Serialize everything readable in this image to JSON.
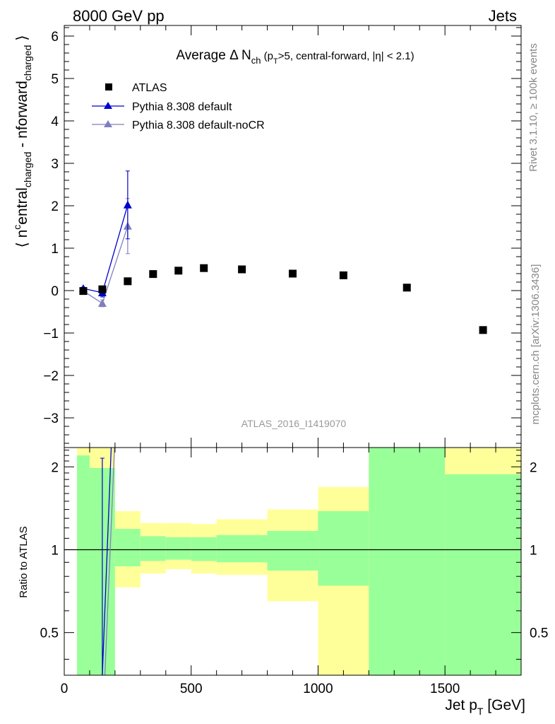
{
  "header": {
    "left": "8000 GeV pp",
    "right": "Jets"
  },
  "side_text": {
    "rivet": "Rivet 3.1.10, ≥ 100k events",
    "mcplots": "mcplots.cern.ch [arXiv:1306.3436]"
  },
  "watermark": "ATLAS_2016_I1419070",
  "colors": {
    "atlas": "#000000",
    "default": "#0000cc",
    "noCR": "#7f7fbf",
    "band_green": "#99ff99",
    "band_yellow": "#ffff99"
  },
  "chart_data": [
    {
      "type": "scatter",
      "title": "Average Δ N_ch (p_T>5, central-forward, |η| < 2.1)",
      "ylabel": "⟨ n^central_charged - n^forward_charged ⟩",
      "ylim": [
        -3.7,
        6.25
      ],
      "xlim": [
        0,
        1800
      ],
      "yticks": [
        -3,
        -2,
        -1,
        0,
        1,
        2,
        3,
        4,
        5,
        6
      ],
      "legend_position": "top-left",
      "series": [
        {
          "name": "ATLAS",
          "marker": "square",
          "x": [
            75,
            150,
            250,
            350,
            450,
            550,
            700,
            900,
            1100,
            1350,
            1650
          ],
          "y": [
            -0.01,
            0.03,
            0.22,
            0.39,
            0.47,
            0.53,
            0.5,
            0.4,
            0.36,
            0.07,
            -0.93
          ]
        },
        {
          "name": "Pythia 8.308 default",
          "marker": "triangle",
          "x": [
            75,
            150,
            250
          ],
          "y": [
            0.05,
            -0.05,
            2.02
          ],
          "yerr": [
            0.03,
            0.1,
            0.8
          ]
        },
        {
          "name": "Pythia 8.308 default-noCR",
          "marker": "triangle",
          "x": [
            75,
            150,
            250
          ],
          "y": [
            -0.01,
            -0.3,
            1.52
          ],
          "yerr": [
            0.03,
            0.08,
            0.65
          ]
        }
      ]
    },
    {
      "type": "line",
      "ylabel": "Ratio to ATLAS",
      "xlabel": "Jet p_T [GeV]",
      "ylim": [
        0.35,
        2.35
      ],
      "xlim": [
        0,
        1800
      ],
      "xticks": [
        0,
        500,
        1000,
        1500
      ],
      "yticks": [
        0.5,
        1,
        2
      ],
      "reference_line": 1,
      "bands": [
        {
          "x0": 50,
          "x1": 100,
          "green": [
            0.35,
            2.2
          ],
          "yellow": [
            0.35,
            2.35
          ]
        },
        {
          "x0": 100,
          "x1": 200,
          "green": [
            0.35,
            1.98
          ],
          "yellow": [
            0.35,
            2.35
          ]
        },
        {
          "x0": 200,
          "x1": 300,
          "green": [
            0.87,
            1.19
          ],
          "yellow": [
            0.73,
            1.38
          ]
        },
        {
          "x0": 300,
          "x1": 400,
          "green": [
            0.91,
            1.12
          ],
          "yellow": [
            0.82,
            1.25
          ]
        },
        {
          "x0": 400,
          "x1": 500,
          "green": [
            0.92,
            1.11
          ],
          "yellow": [
            0.85,
            1.25
          ]
        },
        {
          "x0": 500,
          "x1": 600,
          "green": [
            0.91,
            1.11
          ],
          "yellow": [
            0.82,
            1.24
          ]
        },
        {
          "x0": 600,
          "x1": 800,
          "green": [
            0.9,
            1.13
          ],
          "yellow": [
            0.81,
            1.29
          ]
        },
        {
          "x0": 800,
          "x1": 1000,
          "green": [
            0.84,
            1.17
          ],
          "yellow": [
            0.65,
            1.4
          ]
        },
        {
          "x0": 1000,
          "x1": 1200,
          "green": [
            0.74,
            1.38
          ],
          "yellow": [
            0.35,
            1.69
          ]
        },
        {
          "x0": 1200,
          "x1": 1500,
          "green": [
            0.35,
            2.35
          ],
          "yellow": [
            0.35,
            2.35
          ]
        },
        {
          "x0": 1500,
          "x1": 1800,
          "green": [
            0.35,
            1.88
          ],
          "yellow": [
            0.35,
            2.35
          ]
        }
      ],
      "series": [
        {
          "name": "Pythia 8.308 default",
          "x": [
            150,
            185
          ],
          "y": [
            0.35,
            2.35
          ]
        },
        {
          "name": "Pythia 8.308 default-noCR",
          "x": [
            160,
            198
          ],
          "y": [
            0.35,
            2.35
          ]
        }
      ],
      "ratio_errorbar": {
        "x": 150,
        "y0": 0.35,
        "y1": 2.15
      }
    }
  ]
}
